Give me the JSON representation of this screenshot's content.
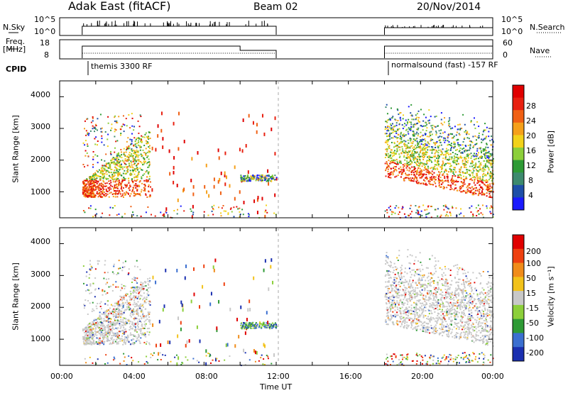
{
  "header": {
    "station": "Adak East (fitACF)",
    "beam": "Beam 02",
    "date": "20/Nov/2014"
  },
  "left_labels": {
    "nsky": "N.Sky",
    "freq_1": "Freq.",
    "freq_2": "[MHz]",
    "cpid": "CPID"
  },
  "right_labels": {
    "nsearch": "N.Search",
    "nave": "Nave"
  },
  "noise_panel": {
    "left_ticks": [
      "10^5",
      "10^0"
    ],
    "right_ticks": [
      "10^5",
      "10^0"
    ]
  },
  "freq_panel": {
    "left_ticks": [
      "18",
      "8"
    ],
    "right_ticks": [
      "60",
      "0"
    ]
  },
  "cpid_panel": {
    "labels": [
      "themis 3300 RF",
      "normalsound (fast) -157 RF"
    ]
  },
  "colors": {
    "power_scale": [
      "#1a1aff",
      "#1e4fa8",
      "#3d8a6e",
      "#2e9a35",
      "#8ccf3a",
      "#f2d21a",
      "#f5a01a",
      "#f06014",
      "#e82010",
      "#e00000"
    ],
    "velocity_scale": [
      "#1a2fb0",
      "#3b6fd0",
      "#2e9a35",
      "#8ccf3a",
      "#c8c8c8",
      "#f2c21a",
      "#f08c1a",
      "#ee4010",
      "#e00000"
    ]
  },
  "chart_data": [
    {
      "type": "heatmap",
      "title": "",
      "xlabel": "",
      "ylabel": "Slant Range [km]",
      "xlim": [
        "00:00",
        "24:00"
      ],
      "ylim": [
        180,
        4500
      ],
      "yticks": [
        "1000",
        "2000",
        "3000",
        "4000"
      ],
      "colorbar_label": "Power [dB]",
      "colorbar_ticks": [
        "4",
        "8",
        "12",
        "16",
        "20",
        "24",
        "28"
      ],
      "data_windows": [
        {
          "start": "01:15",
          "end": "12:00"
        },
        {
          "start": "18:00",
          "end": "24:00"
        }
      ]
    },
    {
      "type": "heatmap",
      "title": "",
      "xlabel": "Time UT",
      "ylabel": "Slant Range [km]",
      "xlim": [
        "00:00",
        "24:00"
      ],
      "ylim": [
        180,
        4500
      ],
      "xticks": [
        "00:00",
        "04:00",
        "08:00",
        "12:00",
        "16:00",
        "20:00",
        "00:00"
      ],
      "yticks": [
        "1000",
        "2000",
        "3000",
        "4000"
      ],
      "colorbar_label": "Velocity [m s⁻¹]",
      "colorbar_ticks": [
        "200",
        "100",
        "50",
        "15",
        "-15",
        "-50",
        "-100",
        "-200"
      ],
      "data_windows": [
        {
          "start": "01:15",
          "end": "12:00"
        },
        {
          "start": "18:00",
          "end": "24:00"
        }
      ]
    }
  ]
}
